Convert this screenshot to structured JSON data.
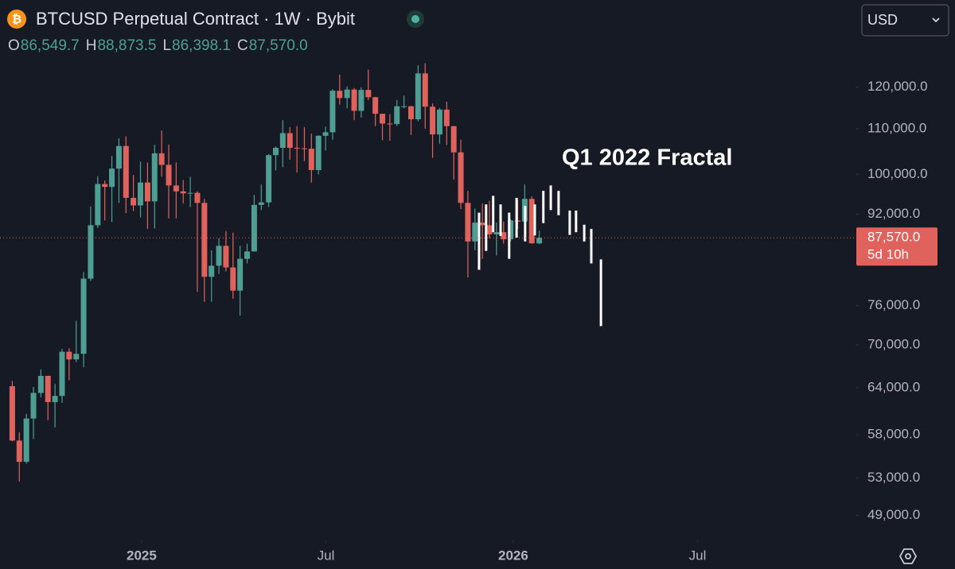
{
  "header": {
    "title": "BTCUSD Perpetual Contract · 1W · Bybit",
    "ohlc_keys": [
      "O",
      "H",
      "L",
      "C"
    ],
    "ohlc_labels": [
      "86,549.7",
      "88,873.5",
      "86,398.1",
      "87,570.0"
    ],
    "currency": "USD"
  },
  "chart_data": {
    "type": "candlestick",
    "log_scale": true,
    "grid": false,
    "up_color": "#4f9e94",
    "down_color": "#e0625c",
    "x": [
      2024.652,
      2024.671,
      2024.69,
      2024.709,
      2024.729,
      2024.748,
      2024.767,
      2024.786,
      2024.805,
      2024.824,
      2024.844,
      2024.863,
      2024.882,
      2024.901,
      2024.92,
      2024.939,
      2024.958,
      2024.978,
      2024.997,
      2025.016,
      2025.035,
      2025.054,
      2025.073,
      2025.093,
      2025.112,
      2025.131,
      2025.15,
      2025.169,
      2025.188,
      2025.208,
      2025.227,
      2025.246,
      2025.265,
      2025.284,
      2025.303,
      2025.322,
      2025.342,
      2025.361,
      2025.38,
      2025.399,
      2025.418,
      2025.438,
      2025.457,
      2025.476,
      2025.495,
      2025.514,
      2025.533,
      2025.553,
      2025.572,
      2025.591,
      2025.61,
      2025.629,
      2025.648,
      2025.668,
      2025.687,
      2025.706,
      2025.725,
      2025.744,
      2025.763,
      2025.783,
      2025.802,
      2025.821,
      2025.84,
      2025.859,
      2025.878,
      2025.897,
      2025.917,
      2025.936,
      2025.955,
      2025.974,
      2025.993,
      2026.012,
      2026.031,
      2026.05,
      2026.07
    ],
    "open": [
      64200,
      57300,
      54800,
      60000,
      63300,
      65600,
      62100,
      62900,
      69000,
      67900,
      68700,
      80400,
      89900,
      98000,
      97400,
      101200,
      106100,
      95200,
      93700,
      98300,
      94500,
      104500,
      102000,
      97700,
      96500,
      96100,
      96200,
      94200,
      80700,
      82600,
      86100,
      82300,
      78400,
      83800,
      85100,
      93800,
      94300,
      104100,
      105700,
      109000,
      105700,
      105600,
      105500,
      100900,
      108400,
      109200,
      119100,
      117300,
      119400,
      114200,
      119300,
      117500,
      113500,
      111200,
      111100,
      115300,
      115300,
      112200,
      123500,
      115200,
      108700,
      114500,
      110600,
      104700,
      94200,
      86900,
      90400,
      89900,
      88200,
      88600,
      87300,
      90800,
      90600,
      95000,
      86549.7
    ],
    "high": [
      64900,
      58300,
      60600,
      64100,
      66500,
      65600,
      64500,
      69400,
      69500,
      73600,
      81500,
      93500,
      99600,
      98700,
      103900,
      107800,
      108300,
      99900,
      102700,
      102500,
      106400,
      109600,
      106400,
      102500,
      98800,
      99500,
      96500,
      95000,
      85300,
      87500,
      88800,
      88500,
      86100,
      86500,
      95800,
      97900,
      104300,
      106000,
      112000,
      110400,
      110600,
      110400,
      108900,
      108500,
      110500,
      119500,
      123200,
      120200,
      119800,
      120000,
      124500,
      117600,
      113500,
      113400,
      116800,
      117900,
      115400,
      125600,
      126200,
      116000,
      114900,
      116400,
      110600,
      107500,
      96600,
      93100,
      94100,
      94600,
      90400,
      90600,
      91000,
      94800,
      97900,
      95500,
      88873.5
    ],
    "low": [
      57200,
      52600,
      54600,
      57500,
      62700,
      59800,
      58900,
      62000,
      65000,
      67500,
      66800,
      80000,
      89400,
      90800,
      90500,
      94200,
      92200,
      92600,
      91400,
      89200,
      89300,
      99500,
      91200,
      91200,
      94100,
      93400,
      78200,
      76600,
      76600,
      81200,
      81600,
      77100,
      74400,
      83000,
      85100,
      92800,
      93400,
      100800,
      101500,
      103100,
      100400,
      102800,
      98300,
      100000,
      105100,
      107500,
      115700,
      114800,
      112000,
      112600,
      116800,
      110600,
      107400,
      107300,
      110600,
      114800,
      108600,
      111700,
      110000,
      103500,
      106600,
      106300,
      98900,
      93000,
      80600,
      85300,
      83800,
      87500,
      84400,
      86500,
      86900,
      89200,
      90200,
      86500,
      86398.1
    ],
    "close": [
      57300,
      54800,
      60000,
      63300,
      65600,
      62100,
      62900,
      69000,
      67900,
      68700,
      80400,
      89900,
      98000,
      97400,
      101200,
      106100,
      95200,
      93700,
      98300,
      94500,
      104500,
      102000,
      97700,
      96500,
      96100,
      96200,
      94200,
      80700,
      82600,
      86100,
      82300,
      78400,
      83800,
      85100,
      93800,
      94300,
      104100,
      105700,
      109000,
      105700,
      105600,
      105500,
      100900,
      108400,
      109200,
      119100,
      117300,
      119400,
      114200,
      119300,
      117500,
      113500,
      111200,
      111100,
      115300,
      115300,
      112200,
      123500,
      115200,
      108700,
      114500,
      110600,
      104700,
      94200,
      86900,
      90400,
      89900,
      88200,
      88600,
      87300,
      90800,
      90600,
      95000,
      86549.7,
      87570
    ],
    "fractal": {
      "color": "#ffffff",
      "x": [
        2025.908,
        2025.927,
        2025.946,
        2025.966,
        2025.989,
        2026.009,
        2026.032,
        2026.058,
        2026.081,
        2026.101,
        2026.122,
        2026.152,
        2026.169,
        2026.191,
        2026.21,
        2026.236
      ],
      "high": [
        92300,
        93900,
        95600,
        93900,
        92300,
        95200,
        93600,
        93900,
        96600,
        97700,
        96600,
        92700,
        92700,
        90000,
        89200,
        83700
      ],
      "low": [
        81900,
        85200,
        88600,
        87900,
        83800,
        87600,
        86900,
        88000,
        90300,
        92800,
        91800,
        88100,
        88600,
        86900,
        83000,
        72800
      ]
    },
    "annotation": "Q1 2022 Fractal",
    "last_price": {
      "value": 87570,
      "label": "87,570.0"
    },
    "countdown": "5d 10h",
    "xlim": [
      2024.619,
      2026.921
    ],
    "xticks": [
      {
        "value": 2025,
        "label": "2025"
      },
      {
        "value": 2025.496,
        "label": "Jul"
      },
      {
        "value": 2026,
        "label": "2026"
      },
      {
        "value": 2026.496,
        "label": "Jul"
      }
    ],
    "ylim": [
      46500,
      144000
    ],
    "yticks": [
      {
        "value": 49000,
        "label": "49,000.0"
      },
      {
        "value": 53000,
        "label": "53,000.0"
      },
      {
        "value": 58000,
        "label": "58,000.0"
      },
      {
        "value": 64000,
        "label": "64,000.0"
      },
      {
        "value": 70000,
        "label": "70,000.0"
      },
      {
        "value": 76000,
        "label": "76,000.0"
      },
      {
        "value": 92000,
        "label": "92,000.0"
      },
      {
        "value": 100000,
        "label": "100,000.0"
      },
      {
        "value": 110000,
        "label": "110,000.0"
      },
      {
        "value": 120000,
        "label": "120,000.0"
      }
    ]
  }
}
